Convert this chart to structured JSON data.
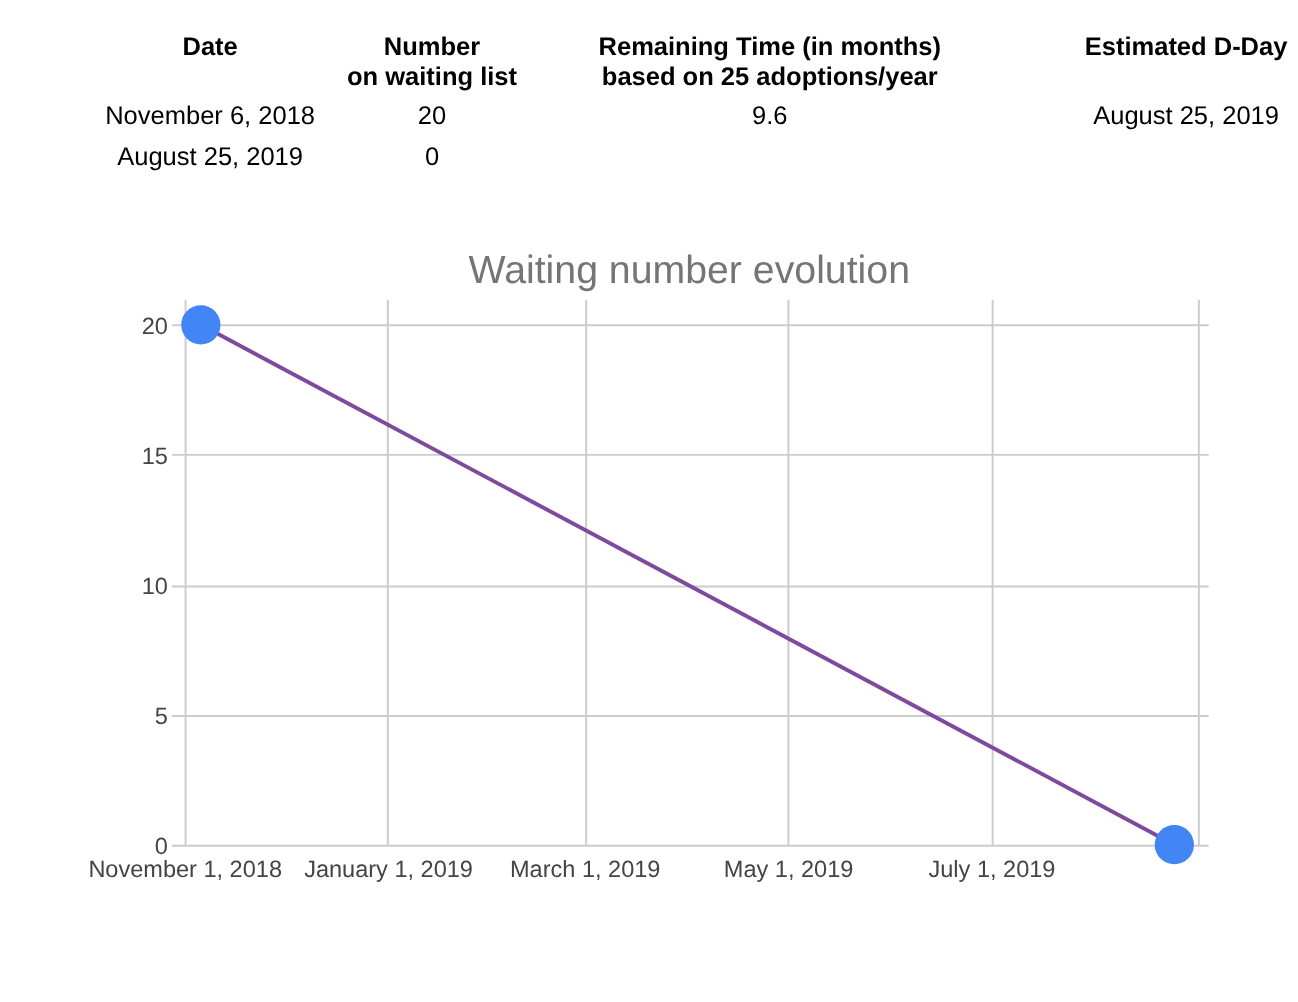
{
  "chart_data": {
    "type": "line",
    "title": "Waiting number evolution",
    "x": [
      "2018-11-06",
      "2019-08-25"
    ],
    "series": [
      {
        "color": "#7e4a9e",
        "values": [
          20,
          0
        ]
      },
      {
        "type": "scatter",
        "color": "#4285f4",
        "values": [
          20,
          0
        ],
        "marker": "circle"
      }
    ],
    "xlim": [
      "2018-10-28",
      "2019-09-04"
    ],
    "xticks": [
      {
        "value": "2018-11-01",
        "label": "November 1, 2018"
      },
      {
        "value": "2019-01-01",
        "label": "January 1, 2019"
      },
      {
        "value": "2019-03-01",
        "label": "March 1, 2019"
      },
      {
        "value": "2019-05-01",
        "label": "May 1, 2019"
      },
      {
        "value": "2019-07-01",
        "label": "July 1, 2019"
      },
      {
        "value": "2019-09-01",
        "label": null
      }
    ],
    "ylim": [
      0,
      21
    ],
    "yticks": [
      0,
      5,
      10,
      15,
      20
    ],
    "grid": true,
    "annotations": [
      "Date",
      "Number\non waiting list",
      "Remaining Time (in months)\nbased on 25 adoptions/year",
      "Estimated D-Day",
      "November 6, 2018",
      "20",
      "9.6",
      "August 25, 2019",
      "August 25, 2019",
      "0"
    ]
  }
}
